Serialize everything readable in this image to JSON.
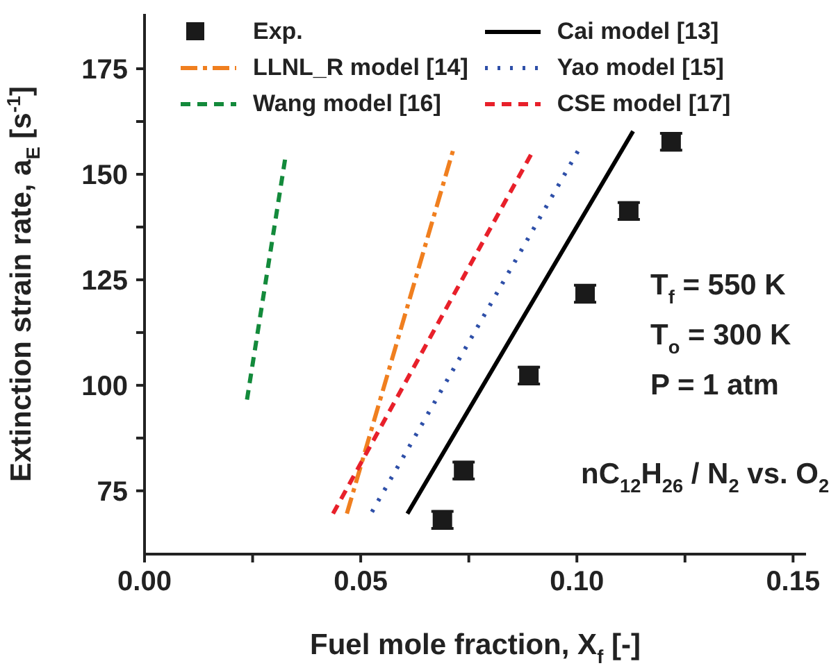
{
  "chart_data": {
    "type": "line",
    "xlabel": "Fuel mole fraction, X$_{f}$ [-]",
    "ylabel": "Extinction strain rate, a$_{E}$ [s$^{-1}$]",
    "xlim": [
      0,
      0.153
    ],
    "ylim": [
      60,
      188
    ],
    "xticks": [
      {
        "value": 0,
        "label": "0.00"
      },
      {
        "value": 0.025,
        "label": null
      },
      0.05,
      {
        "value": 0.075,
        "label": null
      },
      {
        "value": 0.1,
        "label": "0.10"
      },
      {
        "value": 0.125,
        "label": null
      },
      0.15
    ],
    "yticks": [
      75,
      {
        "value": 87.5,
        "label": null
      },
      100,
      {
        "value": 112.5,
        "label": null
      },
      125,
      {
        "value": 137.5,
        "label": null
      },
      150,
      {
        "value": 162.5,
        "label": null
      },
      175
    ],
    "legend": "top left",
    "annotations": [
      "T$_{f}$ = 550 K",
      "T$_{o}$ = 300 K",
      "P = 1 atm",
      "nC$_{12}$H$_{26}$ / N$_{2}$  vs. O$_{2}$"
    ],
    "series": [
      {
        "name": "Exp.",
        "type": "scatter",
        "marker": "square",
        "color": "#1a1a1a",
        "x": [
          0.0689,
          0.0738,
          0.0889,
          0.1019,
          0.112,
          0.1218
        ],
        "values": [
          68.1,
          79.8,
          102.3,
          121.7,
          141.3,
          157.7
        ],
        "errors": [
          2,
          2,
          2,
          2,
          2,
          2
        ]
      },
      {
        "name": "Cai model [13]",
        "line_style": "solid",
        "color": "#000000",
        "x": [
          0.0608,
          0.113
        ],
        "values": [
          69.6,
          160.2
        ]
      },
      {
        "name": "LLNL_R model [14]",
        "line_style": "dashdot",
        "color": "#f07f1f",
        "x": [
          0.0468,
          0.0714
        ],
        "values": [
          69.6,
          155.8
        ]
      },
      {
        "name": "Yao model  [15]",
        "line_style": "dotted",
        "color": "#2e4fa8",
        "x": [
          0.0526,
          0.1003
        ],
        "values": [
          70,
          155.6
        ]
      },
      {
        "name": "Wang model [16]",
        "line_style": "dashed",
        "color": "#138a3b",
        "x": [
          0.0237,
          0.0325
        ],
        "values": [
          96.6,
          153.5
        ]
      },
      {
        "name": "CSE model [17]",
        "line_style": "dashed",
        "color": "#e8202a",
        "x": [
          0.0436,
          0.09
        ],
        "values": [
          69.6,
          155.8
        ]
      }
    ]
  }
}
